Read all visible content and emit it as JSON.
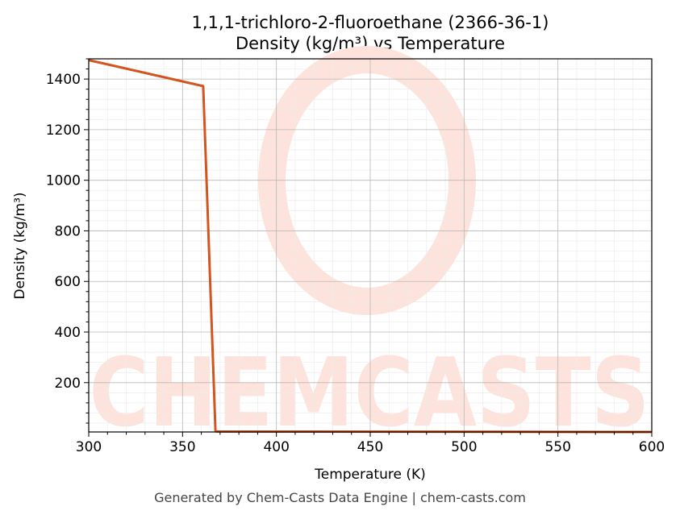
{
  "chart_data": {
    "type": "line",
    "title_line1": "1,1,1-trichloro-2-fluoroethane (2366-36-1)",
    "title_line2": "Density (kg/m³) vs Temperature",
    "xlabel": "Temperature (K)",
    "ylabel": "Density (kg/m³)",
    "xlim": [
      300,
      600
    ],
    "ylim": [
      5,
      1480
    ],
    "xticks": [
      300,
      350,
      400,
      450,
      500,
      550,
      600
    ],
    "yticks": [
      200,
      400,
      600,
      800,
      1000,
      1200,
      1400
    ],
    "grid": true,
    "series": [
      {
        "color": "#d4541f",
        "x": [
          300,
          361,
          367.5,
          368,
          600
        ],
        "y": [
          1475,
          1372,
          10,
          7,
          5
        ]
      }
    ]
  },
  "watermark": {
    "text": "CHEMCASTS",
    "color": "#fde3dc"
  },
  "footer": "Generated by Chem-Casts Data Engine | chem-casts.com"
}
